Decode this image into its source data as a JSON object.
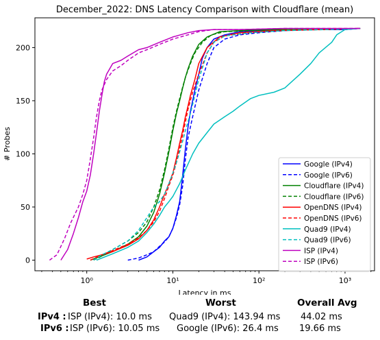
{
  "chart_data": {
    "type": "line",
    "title": "December_2022: DNS Latency Comparison with Cloudflare (mean)",
    "xlabel": "Latency in ms",
    "ylabel": "# Probes",
    "xscale": "log",
    "xlim": [
      0.25,
      2200
    ],
    "ylim": [
      -10,
      228
    ],
    "x_ticks": [
      1,
      10,
      100,
      1000
    ],
    "x_tick_labels": [
      "10⁰",
      "10¹",
      "10²",
      "10³"
    ],
    "y_ticks": [
      0,
      50,
      100,
      150,
      200
    ],
    "grid": false,
    "legend_position": "lower-right",
    "series": [
      {
        "name": "Google (IPv4)",
        "color": "#0000ff",
        "dash": false,
        "x": [
          4.0,
          5.0,
          6.0,
          7.0,
          8.0,
          9.0,
          10.0,
          11.0,
          12.0,
          13.0,
          14.0,
          15.0,
          16.0,
          17.0,
          18.0,
          20.0,
          22.0,
          25.0,
          30.0,
          40.0,
          60.0,
          100.0,
          300.0,
          1000.0,
          1500.0
        ],
        "y": [
          0,
          3,
          8,
          12,
          18,
          22,
          30,
          42,
          55,
          80,
          105,
          125,
          140,
          150,
          160,
          175,
          190,
          200,
          208,
          212,
          215,
          216,
          217,
          217,
          218
        ]
      },
      {
        "name": "Google (IPv6)",
        "color": "#0000ff",
        "dash": true,
        "x": [
          3.0,
          4.0,
          5.0,
          6.0,
          7.0,
          8.0,
          9.0,
          10.0,
          11.0,
          12.0,
          13.0,
          14.0,
          15.0,
          17.0,
          20.0,
          25.0,
          30.0,
          40.0,
          60.0,
          100.0,
          200.0,
          500.0,
          1000.0,
          1500.0
        ],
        "y": [
          0,
          2,
          5,
          8,
          13,
          17,
          22,
          30,
          40,
          52,
          70,
          95,
          115,
          135,
          160,
          185,
          200,
          208,
          212,
          214,
          216,
          217,
          217,
          218
        ]
      },
      {
        "name": "Cloudflare (IPv4)",
        "color": "#008000",
        "dash": false,
        "x": [
          1.1,
          1.5,
          2.0,
          3.0,
          4.0,
          5.0,
          6.0,
          7.0,
          8.0,
          9.0,
          10.0,
          11.0,
          12.0,
          13.0,
          14.0,
          15.0,
          17.0,
          20.0,
          25.0,
          35.0,
          60.0,
          150.0,
          500.0,
          1500.0
        ],
        "y": [
          0,
          4,
          8,
          15,
          22,
          32,
          45,
          62,
          82,
          102,
          122,
          138,
          150,
          162,
          172,
          180,
          192,
          203,
          210,
          215,
          216,
          217,
          217,
          218
        ]
      },
      {
        "name": "Cloudflare (IPv6)",
        "color": "#008000",
        "dash": true,
        "x": [
          1.2,
          1.6,
          2.0,
          3.0,
          4.0,
          5.0,
          6.0,
          7.0,
          8.0,
          9.0,
          10.0,
          11.0,
          12.0,
          13.0,
          14.0,
          16.0,
          18.0,
          22.0,
          28.0,
          40.0,
          80.0,
          200.0,
          600.0,
          1500.0
        ],
        "y": [
          0,
          5,
          10,
          18,
          26,
          36,
          50,
          66,
          85,
          105,
          125,
          140,
          152,
          163,
          172,
          185,
          195,
          205,
          212,
          215,
          216,
          217,
          217,
          218
        ]
      },
      {
        "name": "OpenDNS (IPv4)",
        "color": "#ff0000",
        "dash": false,
        "x": [
          1.0,
          1.2,
          1.5,
          2.0,
          3.0,
          4.0,
          5.0,
          6.0,
          7.0,
          8.0,
          9.0,
          10.0,
          11.0,
          12.0,
          13.0,
          14.0,
          15.0,
          16.0,
          18.0,
          20.0,
          25.0,
          35.0,
          60.0,
          150.0,
          500.0,
          1500.0
        ],
        "y": [
          1,
          3,
          5,
          8,
          14,
          20,
          28,
          38,
          50,
          62,
          72,
          82,
          96,
          110,
          122,
          135,
          145,
          155,
          170,
          185,
          200,
          210,
          214,
          216,
          217,
          218
        ]
      },
      {
        "name": "OpenDNS (IPv6)",
        "color": "#ff0000",
        "dash": true,
        "x": [
          1.1,
          1.5,
          2.0,
          3.0,
          4.0,
          5.0,
          6.0,
          7.0,
          8.0,
          9.0,
          10.0,
          11.0,
          12.0,
          13.0,
          14.0,
          15.0,
          17.0,
          20.0,
          25.0,
          30.0,
          40.0,
          80.0,
          200.0,
          600.0,
          1500.0
        ],
        "y": [
          0,
          5,
          9,
          15,
          21,
          28,
          36,
          46,
          58,
          70,
          80,
          92,
          105,
          118,
          130,
          142,
          158,
          175,
          195,
          205,
          211,
          214,
          216,
          217,
          218
        ]
      },
      {
        "name": "Quad9 (IPv4)",
        "color": "#00bfbf",
        "dash": false,
        "x": [
          1.3,
          2.0,
          3.0,
          4.0,
          5.0,
          6.0,
          7.0,
          8.0,
          9.0,
          10.0,
          12.0,
          14.0,
          17.0,
          20.0,
          25.0,
          30.0,
          40.0,
          50.0,
          60.0,
          80.0,
          100.0,
          150.0,
          200.0,
          300.0,
          400.0,
          500.0,
          700.0,
          800.0,
          1000.0,
          1500.0
        ],
        "y": [
          0,
          6,
          12,
          18,
          26,
          34,
          42,
          50,
          55,
          60,
          72,
          85,
          100,
          110,
          120,
          128,
          135,
          140,
          145,
          152,
          155,
          158,
          162,
          175,
          185,
          195,
          205,
          212,
          217,
          218
        ]
      },
      {
        "name": "Quad9 (IPv6)",
        "color": "#00bfbf",
        "dash": true,
        "x": [
          1.2,
          1.5,
          2.0,
          3.0,
          4.0,
          5.0,
          6.0,
          7.0,
          8.0,
          9.0,
          10.0,
          11.0,
          12.0,
          13.0,
          14.0,
          16.0,
          18.0,
          20.0,
          25.0,
          30.0,
          40.0,
          80.0,
          200.0,
          600.0,
          1500.0
        ],
        "y": [
          0,
          5,
          10,
          18,
          28,
          40,
          50,
          55,
          62,
          72,
          82,
          92,
          102,
          112,
          122,
          138,
          155,
          170,
          195,
          205,
          211,
          214,
          216,
          217,
          218
        ]
      },
      {
        "name": "ISP (IPv4)",
        "color": "#bf00bf",
        "dash": false,
        "x": [
          0.5,
          0.6,
          0.7,
          0.8,
          0.9,
          1.0,
          1.1,
          1.2,
          1.3,
          1.4,
          1.5,
          1.6,
          1.7,
          2.0,
          2.5,
          3.0,
          4.0,
          5.0,
          7.0,
          10.0,
          15.0,
          20.0,
          30.0,
          60.0,
          200.0,
          1500.0
        ],
        "y": [
          0,
          10,
          25,
          40,
          55,
          65,
          80,
          100,
          120,
          140,
          155,
          168,
          175,
          185,
          188,
          192,
          198,
          200,
          205,
          210,
          214,
          216,
          217,
          217,
          218,
          218
        ]
      },
      {
        "name": "ISP (IPv6)",
        "color": "#bf00bf",
        "dash": true,
        "x": [
          0.37,
          0.45,
          0.55,
          0.65,
          0.8,
          0.9,
          1.0,
          1.1,
          1.2,
          1.3,
          1.4,
          1.5,
          1.7,
          2.0,
          2.5,
          3.0,
          4.0,
          5.0,
          7.0,
          10.0,
          15.0,
          20.0,
          30.0,
          60.0,
          200.0,
          1500.0
        ],
        "y": [
          0,
          5,
          20,
          35,
          50,
          62,
          75,
          95,
          115,
          135,
          150,
          160,
          170,
          178,
          183,
          188,
          195,
          198,
          203,
          208,
          212,
          215,
          217,
          217,
          218,
          218
        ]
      }
    ]
  },
  "summary": {
    "headers": {
      "best": "Best",
      "worst": "Worst",
      "overall": "Overall Avg"
    },
    "rows": [
      {
        "label": "IPv4 :",
        "best": "ISP (IPv4): 10.0 ms",
        "worst": "Quad9 (IPv4): 143.94 ms",
        "overall": "44.02 ms"
      },
      {
        "label": "IPv6 :",
        "best": "ISP (IPv6): 10.05 ms",
        "worst": "Google (IPv6): 26.4 ms",
        "overall": "19.66 ms"
      }
    ]
  }
}
